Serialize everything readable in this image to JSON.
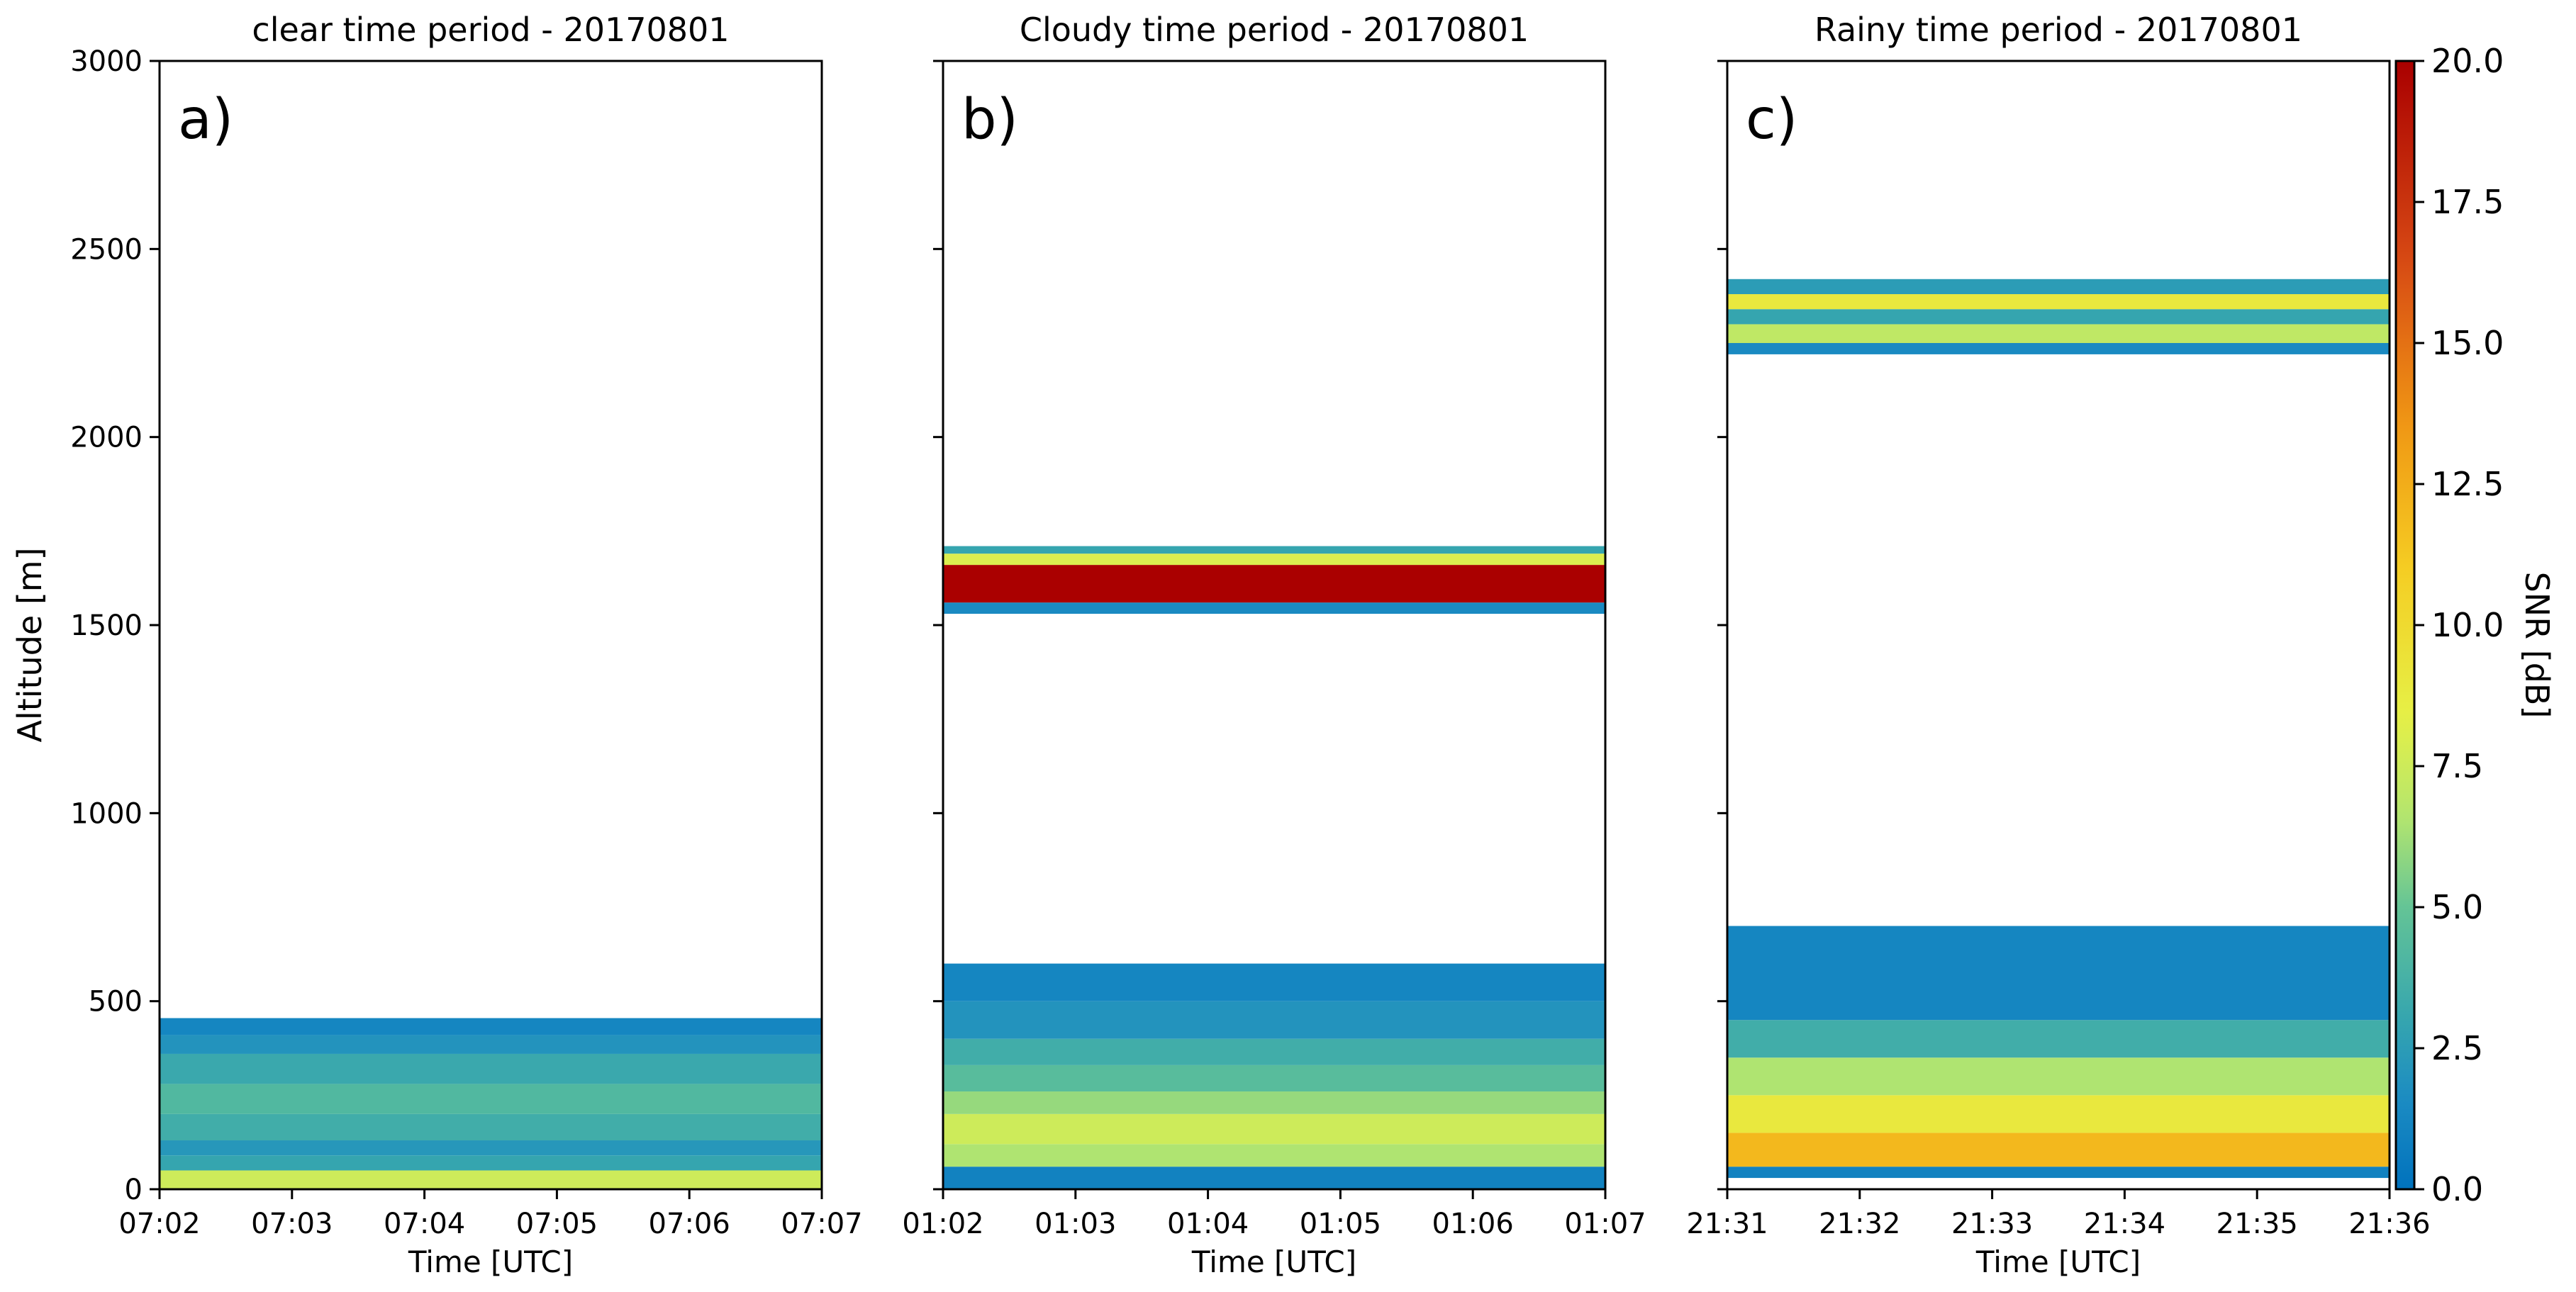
{
  "figure": {
    "ylabel": "Altitude [m]",
    "colorbar": {
      "label": "SNR [dB]",
      "min": 0,
      "max": 20,
      "ticks": [
        "0.0",
        "2.5",
        "5.0",
        "7.5",
        "10.0",
        "12.5",
        "15.0",
        "17.5",
        "20.0"
      ],
      "colormap": "jet-like (blue → teal → yellow-green → yellow → orange → dark red)"
    }
  },
  "chart_data": [
    {
      "type": "heatmap",
      "title": "clear time period - 20170801",
      "panel_label": "a)",
      "xlabel": "Time [UTC]",
      "ylabel": "Altitude [m]",
      "x_ticks": [
        "07:02",
        "07:03",
        "07:04",
        "07:05",
        "07:06",
        "07:07"
      ],
      "y_ticks": [
        "0",
        "500",
        "1000",
        "1500",
        "2000",
        "2500",
        "3000"
      ],
      "ylim": [
        0,
        3000
      ],
      "xlim": [
        "07:02",
        "07:07"
      ],
      "layers": [
        {
          "from": 0,
          "to": 50,
          "snr_db": 7.5
        },
        {
          "from": 50,
          "to": 90,
          "snr_db": 3.0
        },
        {
          "from": 90,
          "to": 130,
          "snr_db": 2.2
        },
        {
          "from": 130,
          "to": 200,
          "snr_db": 3.5
        },
        {
          "from": 200,
          "to": 280,
          "snr_db": 4.2
        },
        {
          "from": 280,
          "to": 360,
          "snr_db": 3.2
        },
        {
          "from": 360,
          "to": 410,
          "snr_db": 2.0
        },
        {
          "from": 410,
          "to": 455,
          "snr_db": 1.2
        }
      ]
    },
    {
      "type": "heatmap",
      "title": "Cloudy time period - 20170801",
      "panel_label": "b)",
      "xlabel": "Time [UTC]",
      "ylabel": "",
      "x_ticks": [
        "01:02",
        "01:03",
        "01:04",
        "01:05",
        "01:06",
        "01:07"
      ],
      "y_ticks": [
        "0",
        "500",
        "1000",
        "1500",
        "2000",
        "2500",
        "3000"
      ],
      "ylim": [
        0,
        3000
      ],
      "xlim": [
        "01:02",
        "01:07"
      ],
      "layers": [
        {
          "from": 0,
          "to": 60,
          "snr_db": 1.0
        },
        {
          "from": 60,
          "to": 120,
          "snr_db": 6.5
        },
        {
          "from": 120,
          "to": 200,
          "snr_db": 7.5
        },
        {
          "from": 200,
          "to": 260,
          "snr_db": 6.0
        },
        {
          "from": 260,
          "to": 330,
          "snr_db": 4.5
        },
        {
          "from": 330,
          "to": 400,
          "snr_db": 3.5
        },
        {
          "from": 400,
          "to": 500,
          "snr_db": 2.0
        },
        {
          "from": 500,
          "to": 600,
          "snr_db": 1.2
        },
        {
          "from": 1530,
          "to": 1560,
          "snr_db": 1.5
        },
        {
          "from": 1560,
          "to": 1660,
          "snr_db": 20.0
        },
        {
          "from": 1660,
          "to": 1690,
          "snr_db": 8.0
        },
        {
          "from": 1690,
          "to": 1710,
          "snr_db": 3.0
        }
      ]
    },
    {
      "type": "heatmap",
      "title": "Rainy time period - 20170801",
      "panel_label": "c)",
      "xlabel": "Time [UTC]",
      "ylabel": "",
      "x_ticks": [
        "21:31",
        "21:32",
        "21:33",
        "21:34",
        "21:35",
        "21:36"
      ],
      "y_ticks": [
        "0",
        "500",
        "1000",
        "1500",
        "2000",
        "2500",
        "3000"
      ],
      "ylim": [
        0,
        3000
      ],
      "xlim": [
        "21:31",
        "21:36"
      ],
      "layers": [
        {
          "from": 30,
          "to": 60,
          "snr_db": 1.0
        },
        {
          "from": 60,
          "to": 150,
          "snr_db": 12.0
        },
        {
          "from": 150,
          "to": 250,
          "snr_db": 9.0
        },
        {
          "from": 250,
          "to": 350,
          "snr_db": 6.5
        },
        {
          "from": 350,
          "to": 450,
          "snr_db": 3.5
        },
        {
          "from": 450,
          "to": 700,
          "snr_db": 1.2
        },
        {
          "from": 2220,
          "to": 2250,
          "snr_db": 1.5
        },
        {
          "from": 2250,
          "to": 2300,
          "snr_db": 7.0
        },
        {
          "from": 2300,
          "to": 2340,
          "snr_db": 3.0
        },
        {
          "from": 2340,
          "to": 2380,
          "snr_db": 9.0
        },
        {
          "from": 2380,
          "to": 2420,
          "snr_db": 2.5
        }
      ]
    }
  ]
}
